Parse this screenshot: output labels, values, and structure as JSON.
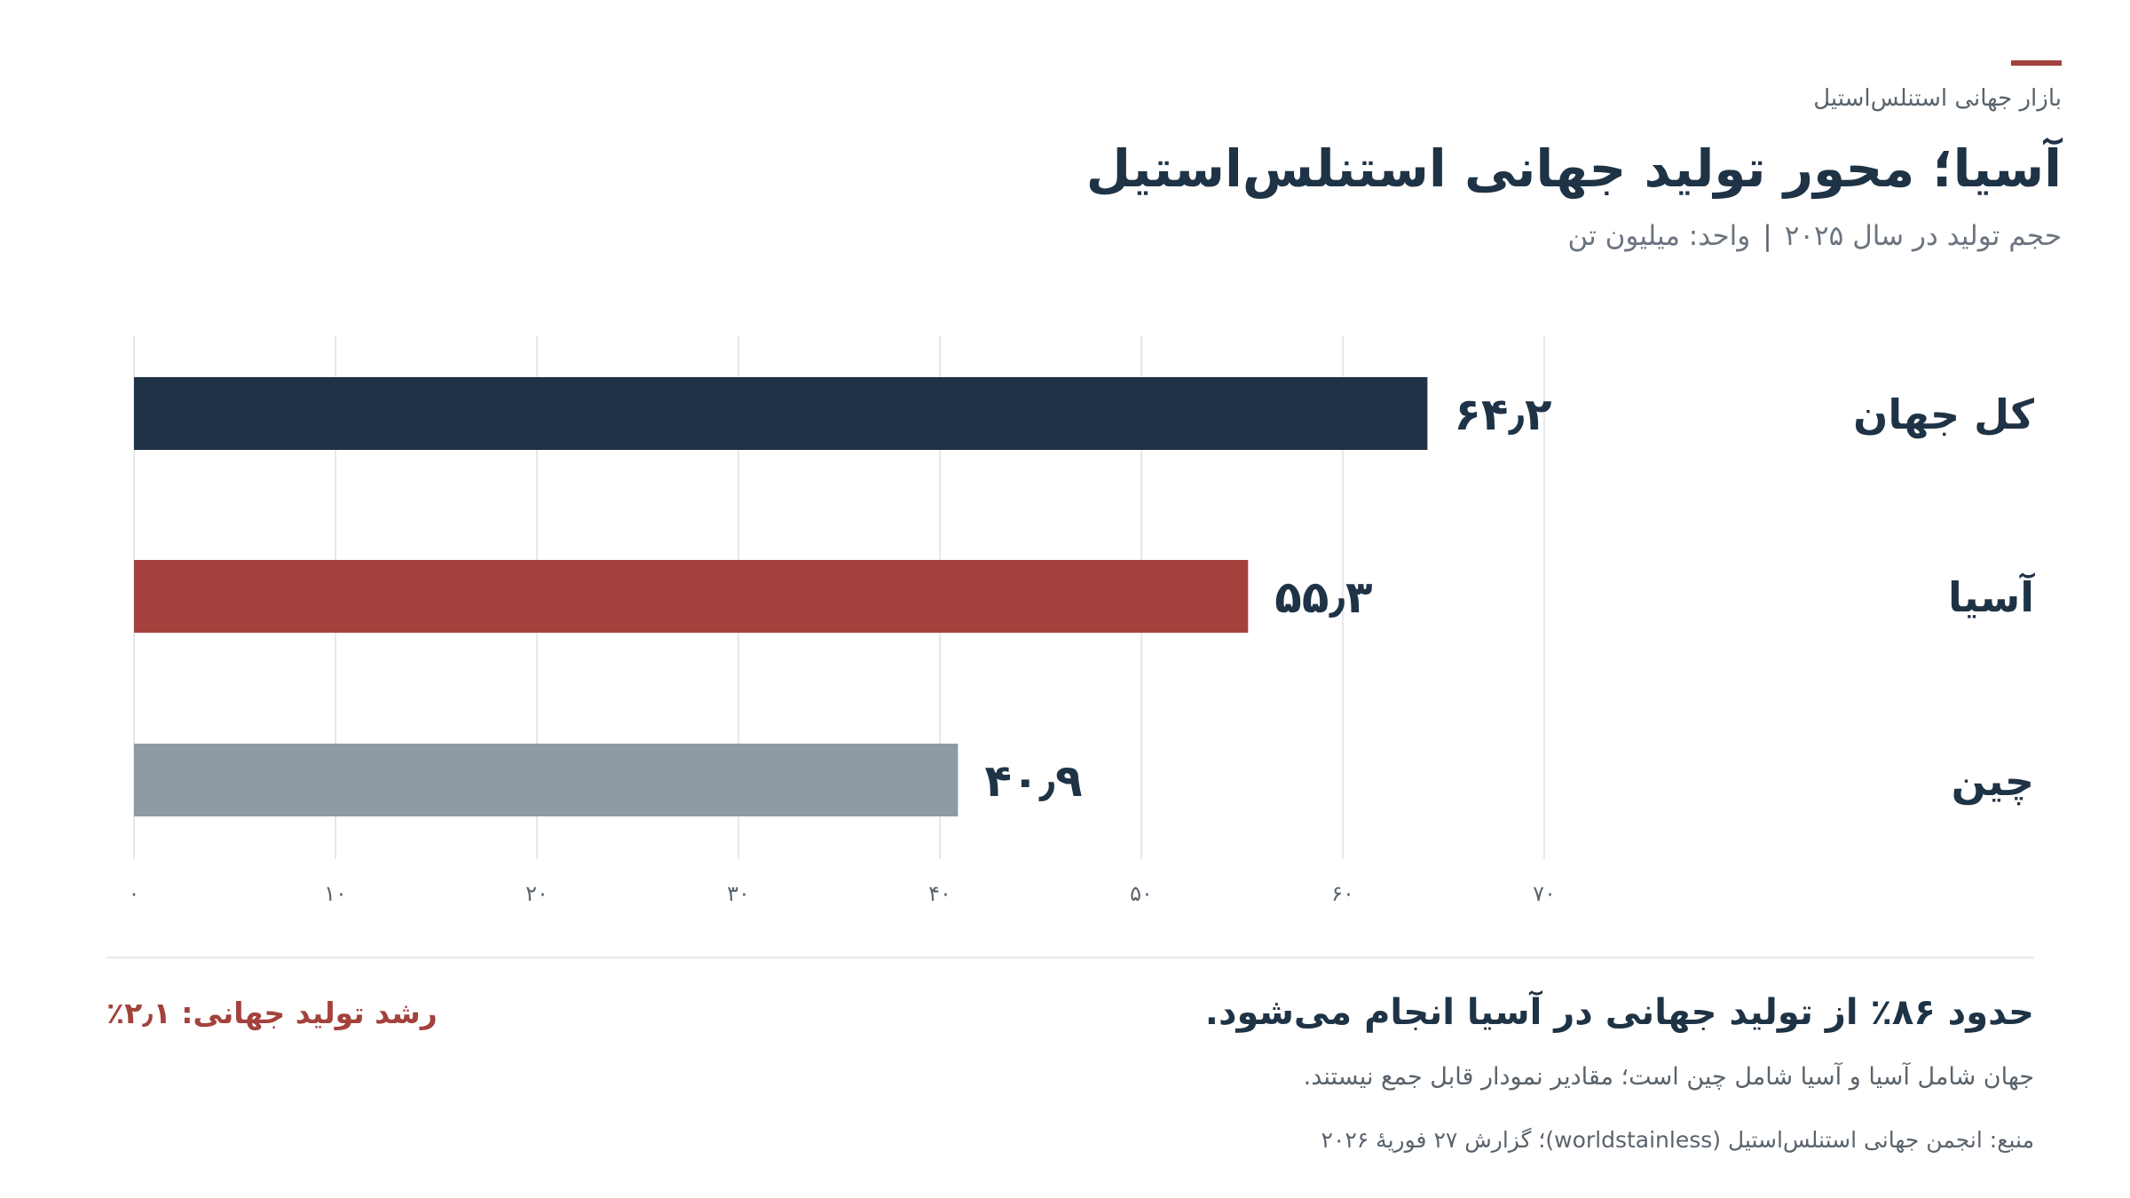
{
  "header": {
    "eyebrow": "بازار جهانی استنلس‌استیل",
    "title": "آسیا؛ محور تولید جهانی استنلس‌استیل",
    "subtitle_volume": "حجم تولید در سال ۲۰۲۵",
    "subtitle_sep": "|",
    "subtitle_unit": "واحد: میلیون تن"
  },
  "colors": {
    "accent": "#a3423c",
    "navy": "#203346",
    "red": "#a3423c",
    "gray": "#8e9ba5",
    "grid": "#e6e8eb"
  },
  "chart_data": {
    "type": "bar",
    "orientation": "horizontal",
    "categories": [
      "کل جهان",
      "آسیا",
      "چین"
    ],
    "values": [
      64.2,
      55.3,
      40.9
    ],
    "value_labels": [
      "۶۴٫۲",
      "۵۵٫۳",
      "۴۰٫۹"
    ],
    "bar_colors": [
      "#203346",
      "#a3423c",
      "#8e9ba5"
    ],
    "xlim": [
      0,
      70
    ],
    "xticks": [
      0,
      10,
      20,
      30,
      40,
      50,
      60,
      70
    ],
    "xtick_labels": [
      "۰",
      "۱۰",
      "۲۰",
      "۳۰",
      "۴۰",
      "۵۰",
      "۶۰",
      "۷۰"
    ],
    "grid": true,
    "legend": false
  },
  "footer": {
    "takeaway": "حدود ۸۶٪ از تولید جهانی در آسیا انجام می‌شود.",
    "growth": "رشد تولید جهانی: ۲٫۱٪",
    "note": "جهان شامل آسیا و آسیا شامل چین است؛ مقادیر نمودار قابل جمع نیستند.",
    "source": "منبع: انجمن جهانی استنلس‌استیل (worldstainless)؛ گزارش ۲۷ فوریهٔ ۲۰۲۶"
  }
}
